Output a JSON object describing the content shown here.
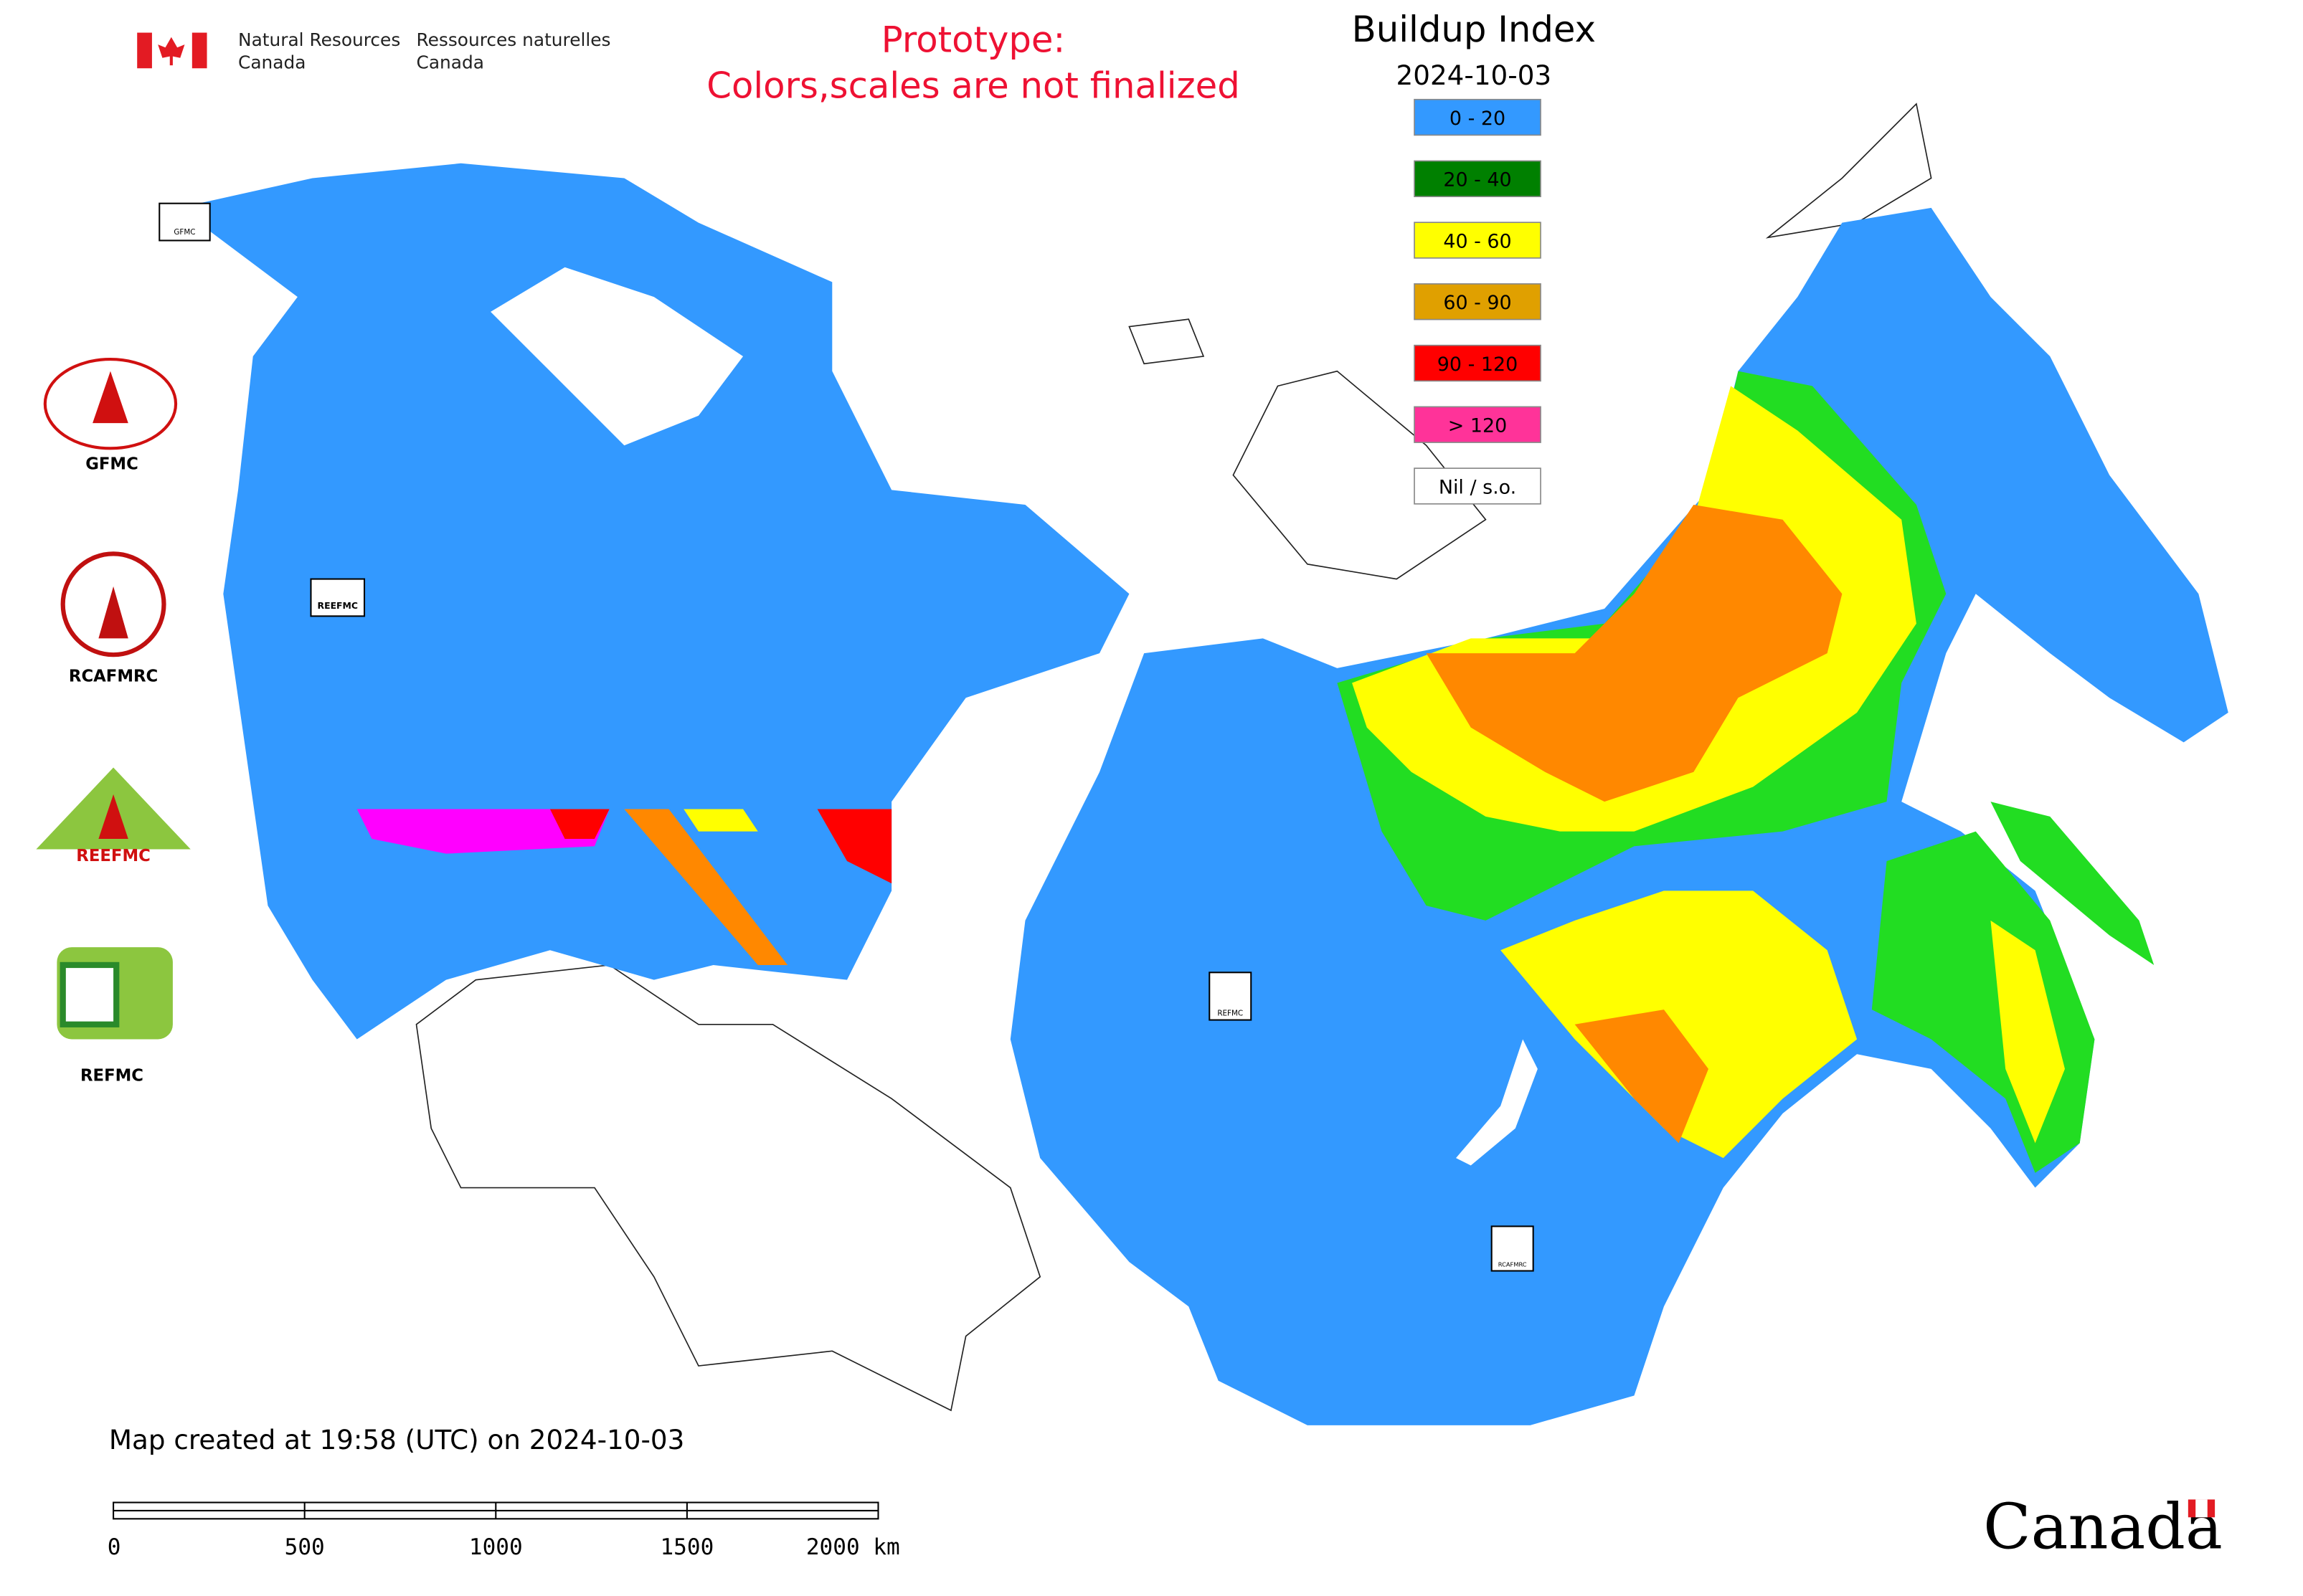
{
  "header": {
    "agency_en": [
      "Natural Resources",
      "Canada"
    ],
    "agency_fr": [
      "Ressources naturelles",
      "Canada"
    ],
    "prototype_note": [
      "Prototype:",
      "Colors,scales are not finalized"
    ]
  },
  "legend": {
    "title": "Buildup Index",
    "date": "2024-10-03",
    "items": [
      {
        "label": "0 - 20",
        "color": "#3399ff"
      },
      {
        "label": "20 - 40",
        "color": "#008000"
      },
      {
        "label": "40 - 60",
        "color": "#ffff00"
      },
      {
        "label": "60 - 90",
        "color": "#e0a000"
      },
      {
        "label": "90 - 120",
        "color": "#ff0000"
      },
      {
        "label": "> 120",
        "color": "#ff3399"
      },
      {
        "label": "Nil / s.o.",
        "color": "#ffffff"
      }
    ]
  },
  "logos": [
    "GFMC",
    "RCAFMRC",
    "REEFMC",
    "REFMC"
  ],
  "map_logos": [
    "GFMC",
    "REEFMC",
    "REFMC",
    "RCAFMRC"
  ],
  "footer": {
    "created": "Map created at 19:58 (UTC) on 2024-10-03",
    "wordmark": "Canada"
  },
  "scale_bar": {
    "labels": [
      "0",
      "500",
      "1000",
      "1500",
      "2000 km"
    ]
  }
}
